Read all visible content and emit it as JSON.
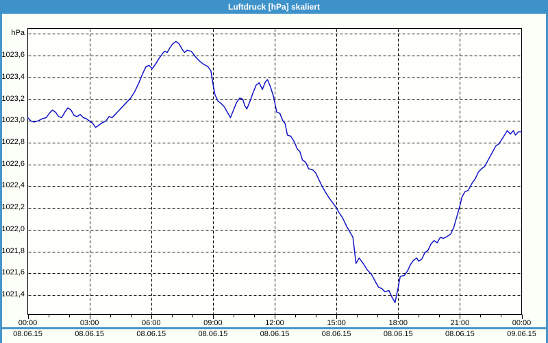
{
  "window": {
    "title": "Luftdruck [hPa] skaliert"
  },
  "colors": {
    "titlebar": "#3E92CA",
    "window_border": "#4796CB",
    "background": "#FCFEF8",
    "plot_background": "#FEFFFB",
    "grid": "#000000",
    "line": "#1414C8",
    "title_text": "#FFFFFF",
    "label_text": "#000000"
  },
  "chart_data": {
    "type": "line",
    "title": "Luftdruck [hPa] skaliert",
    "xlabel": "",
    "ylabel": "hPa",
    "grid": "dashed",
    "legend": "none",
    "y_axis": {
      "unit_label": "hPa",
      "tick_labels": [
        "1023,6",
        "1023,4",
        "1023,2",
        "1023,0",
        "1022,8",
        "1022,6",
        "1022,4",
        "1022,2",
        "1022,0",
        "1021,8",
        "1021,6",
        "1021,4"
      ],
      "tick_values": [
        1023.6,
        1023.4,
        1023.2,
        1023.0,
        1022.8,
        1022.6,
        1022.4,
        1022.2,
        1022.0,
        1021.8,
        1021.6,
        1021.4
      ],
      "grid_values": [
        1023.8,
        1023.6,
        1023.4,
        1023.2,
        1023.0,
        1022.8,
        1022.6,
        1022.4,
        1022.2,
        1022.0,
        1021.8,
        1021.6,
        1021.4
      ],
      "unit_label_value": 1023.8,
      "range": [
        1021.22,
        1023.85
      ]
    },
    "x_axis": {
      "tick_hours": [
        0,
        3,
        6,
        9,
        12,
        15,
        18,
        21,
        24
      ],
      "tick_time_labels": [
        "00:00",
        "03:00",
        "06:00",
        "09:00",
        "12:00",
        "15:00",
        "18:00",
        "21:00",
        "00:00"
      ],
      "tick_date_labels": [
        "08.06.15",
        "08.06.15",
        "08.06.15",
        "08.06.15",
        "08.06.15",
        "08.06.15",
        "08.06.15",
        "08.06.15",
        "09.06.15"
      ],
      "minor_tick_every_hours": 1,
      "grid_hours": [
        3,
        6,
        9,
        12,
        15,
        18,
        21
      ],
      "range_hours": [
        0,
        24
      ]
    },
    "series": [
      {
        "name": "Luftdruck",
        "points": [
          [
            0.0,
            1023.03
          ],
          [
            0.15,
            1023.0
          ],
          [
            0.3,
            1022.99
          ],
          [
            0.5,
            1023.0
          ],
          [
            0.7,
            1023.02
          ],
          [
            0.9,
            1023.03
          ],
          [
            1.05,
            1023.07
          ],
          [
            1.2,
            1023.1
          ],
          [
            1.35,
            1023.08
          ],
          [
            1.5,
            1023.04
          ],
          [
            1.65,
            1023.03
          ],
          [
            1.8,
            1023.08
          ],
          [
            1.95,
            1023.12
          ],
          [
            2.1,
            1023.1
          ],
          [
            2.25,
            1023.05
          ],
          [
            2.4,
            1023.04
          ],
          [
            2.55,
            1023.06
          ],
          [
            2.7,
            1023.03
          ],
          [
            2.85,
            1023.02
          ],
          [
            3.0,
            1023.0
          ],
          [
            3.15,
            1022.98
          ],
          [
            3.3,
            1022.94
          ],
          [
            3.45,
            1022.96
          ],
          [
            3.6,
            1022.98
          ],
          [
            3.8,
            1023.0
          ],
          [
            3.95,
            1023.04
          ],
          [
            4.1,
            1023.03
          ],
          [
            4.25,
            1023.06
          ],
          [
            4.4,
            1023.09
          ],
          [
            4.6,
            1023.13
          ],
          [
            4.8,
            1023.17
          ],
          [
            5.0,
            1023.21
          ],
          [
            5.2,
            1023.27
          ],
          [
            5.4,
            1023.35
          ],
          [
            5.6,
            1023.44
          ],
          [
            5.75,
            1023.5
          ],
          [
            5.9,
            1023.51
          ],
          [
            6.05,
            1023.48
          ],
          [
            6.2,
            1023.52
          ],
          [
            6.4,
            1023.58
          ],
          [
            6.55,
            1023.62
          ],
          [
            6.65,
            1023.64
          ],
          [
            6.78,
            1023.63
          ],
          [
            6.9,
            1023.67
          ],
          [
            7.05,
            1023.71
          ],
          [
            7.2,
            1023.73
          ],
          [
            7.35,
            1023.71
          ],
          [
            7.5,
            1023.66
          ],
          [
            7.62,
            1023.63
          ],
          [
            7.75,
            1023.65
          ],
          [
            7.95,
            1023.64
          ],
          [
            8.15,
            1023.59
          ],
          [
            8.35,
            1023.55
          ],
          [
            8.55,
            1023.52
          ],
          [
            8.75,
            1023.5
          ],
          [
            8.9,
            1023.46
          ],
          [
            9.0,
            1023.34
          ],
          [
            9.1,
            1023.24
          ],
          [
            9.25,
            1023.18
          ],
          [
            9.4,
            1023.16
          ],
          [
            9.55,
            1023.13
          ],
          [
            9.7,
            1023.08
          ],
          [
            9.85,
            1023.03
          ],
          [
            10.0,
            1023.1
          ],
          [
            10.15,
            1023.17
          ],
          [
            10.3,
            1023.21
          ],
          [
            10.45,
            1023.2
          ],
          [
            10.55,
            1023.14
          ],
          [
            10.65,
            1023.11
          ],
          [
            10.8,
            1023.18
          ],
          [
            10.95,
            1023.26
          ],
          [
            11.1,
            1023.33
          ],
          [
            11.25,
            1023.35
          ],
          [
            11.4,
            1023.29
          ],
          [
            11.55,
            1023.36
          ],
          [
            11.65,
            1023.38
          ],
          [
            11.8,
            1023.31
          ],
          [
            11.95,
            1023.22
          ],
          [
            12.1,
            1023.08
          ],
          [
            12.25,
            1023.07
          ],
          [
            12.4,
            1023.0
          ],
          [
            12.5,
            1022.98
          ],
          [
            12.62,
            1022.87
          ],
          [
            12.78,
            1022.86
          ],
          [
            12.95,
            1022.81
          ],
          [
            13.1,
            1022.74
          ],
          [
            13.22,
            1022.72
          ],
          [
            13.35,
            1022.64
          ],
          [
            13.5,
            1022.62
          ],
          [
            13.65,
            1022.56
          ],
          [
            13.85,
            1022.55
          ],
          [
            14.0,
            1022.52
          ],
          [
            14.15,
            1022.46
          ],
          [
            14.3,
            1022.4
          ],
          [
            14.45,
            1022.35
          ],
          [
            14.65,
            1022.29
          ],
          [
            14.85,
            1022.24
          ],
          [
            15.0,
            1022.2
          ],
          [
            15.12,
            1022.16
          ],
          [
            15.3,
            1022.11
          ],
          [
            15.5,
            1022.03
          ],
          [
            15.68,
            1021.97
          ],
          [
            15.8,
            1021.93
          ],
          [
            15.95,
            1021.69
          ],
          [
            16.1,
            1021.74
          ],
          [
            16.3,
            1021.69
          ],
          [
            16.5,
            1021.63
          ],
          [
            16.7,
            1021.59
          ],
          [
            16.9,
            1021.52
          ],
          [
            17.05,
            1021.47
          ],
          [
            17.2,
            1021.46
          ],
          [
            17.35,
            1021.43
          ],
          [
            17.55,
            1021.44
          ],
          [
            17.7,
            1021.38
          ],
          [
            17.85,
            1021.33
          ],
          [
            18.0,
            1021.47
          ],
          [
            18.1,
            1021.57
          ],
          [
            18.3,
            1021.58
          ],
          [
            18.45,
            1021.62
          ],
          [
            18.6,
            1021.68
          ],
          [
            18.75,
            1021.72
          ],
          [
            18.9,
            1021.74
          ],
          [
            19.0,
            1021.71
          ],
          [
            19.15,
            1021.73
          ],
          [
            19.3,
            1021.79
          ],
          [
            19.45,
            1021.81
          ],
          [
            19.6,
            1021.87
          ],
          [
            19.75,
            1021.9
          ],
          [
            19.9,
            1021.88
          ],
          [
            20.05,
            1021.93
          ],
          [
            20.2,
            1021.92
          ],
          [
            20.4,
            1021.94
          ],
          [
            20.55,
            1021.96
          ],
          [
            20.7,
            1022.02
          ],
          [
            20.85,
            1022.12
          ],
          [
            21.0,
            1022.22
          ],
          [
            21.1,
            1022.3
          ],
          [
            21.25,
            1022.35
          ],
          [
            21.4,
            1022.36
          ],
          [
            21.6,
            1022.43
          ],
          [
            21.75,
            1022.47
          ],
          [
            21.9,
            1022.53
          ],
          [
            22.05,
            1022.56
          ],
          [
            22.2,
            1022.58
          ],
          [
            22.4,
            1022.65
          ],
          [
            22.55,
            1022.7
          ],
          [
            22.75,
            1022.77
          ],
          [
            22.9,
            1022.79
          ],
          [
            23.1,
            1022.85
          ],
          [
            23.3,
            1022.91
          ],
          [
            23.45,
            1022.88
          ],
          [
            23.6,
            1022.91
          ],
          [
            23.7,
            1022.87
          ],
          [
            23.85,
            1022.9
          ],
          [
            24.0,
            1022.9
          ]
        ]
      }
    ]
  }
}
